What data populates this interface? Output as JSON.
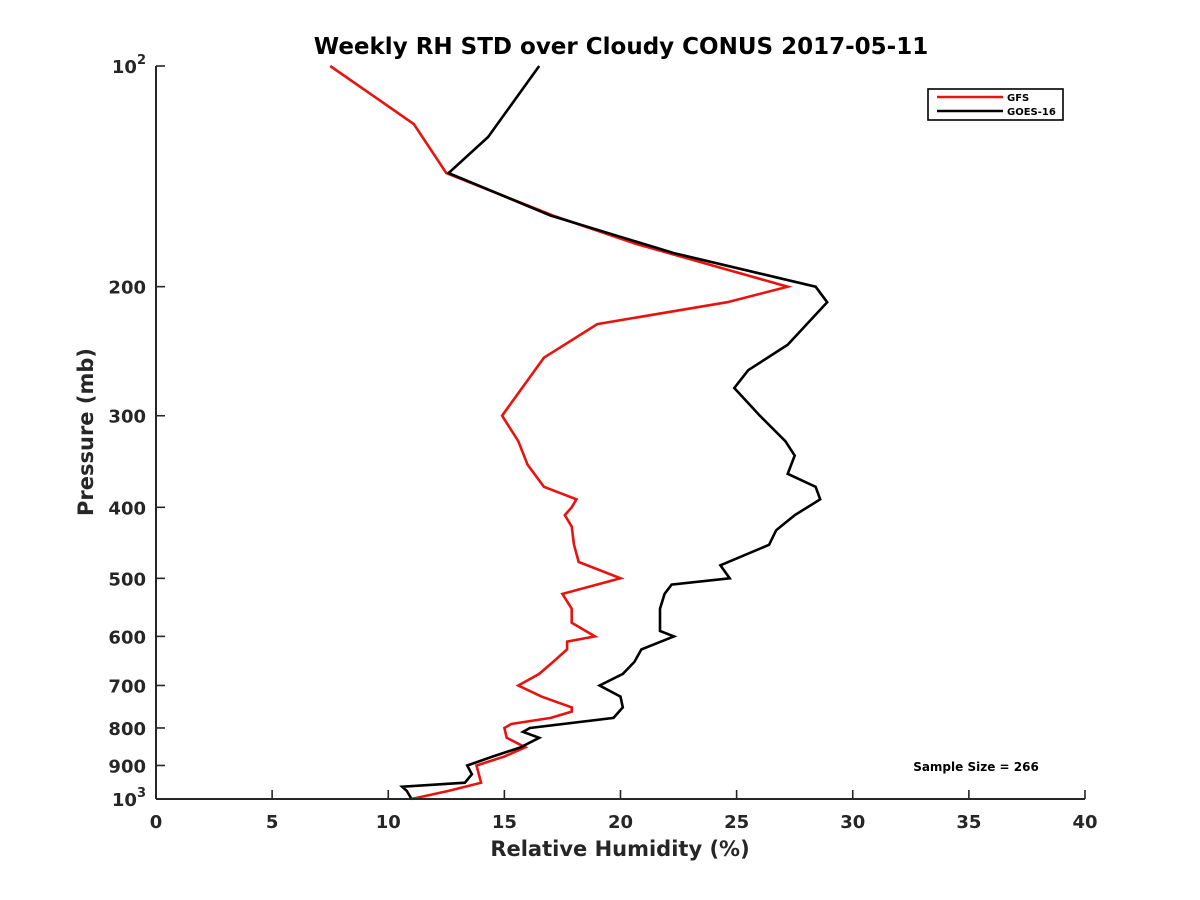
{
  "chart_data": {
    "type": "line",
    "title": "Weekly RH STD over Cloudy CONUS 2017-05-11",
    "xlabel": "Relative Humidity (%)",
    "ylabel": "Pressure (mb)",
    "xlim": [
      0,
      40
    ],
    "ylim": [
      100,
      1000
    ],
    "y_scale": "log",
    "y_reversed": true,
    "x_ticks": [
      0,
      5,
      10,
      15,
      20,
      25,
      30,
      35,
      40
    ],
    "y_ticks": [
      100,
      200,
      300,
      400,
      500,
      600,
      700,
      800,
      900,
      1000
    ],
    "y_tick_labels": [
      {
        "base": "10",
        "exp": "2"
      },
      {
        "base": "200",
        "exp": ""
      },
      {
        "base": "300",
        "exp": ""
      },
      {
        "base": "400",
        "exp": ""
      },
      {
        "base": "500",
        "exp": ""
      },
      {
        "base": "600",
        "exp": ""
      },
      {
        "base": "700",
        "exp": ""
      },
      {
        "base": "800",
        "exp": ""
      },
      {
        "base": "900",
        "exp": ""
      },
      {
        "base": "10",
        "exp": "3"
      }
    ],
    "grid": false,
    "legend_position": "top-right",
    "series": [
      {
        "name": "GFS",
        "color": "#e8130f",
        "points": [
          [
            11.0,
            1000
          ],
          [
            12.6,
            975
          ],
          [
            14.0,
            950
          ],
          [
            13.9,
            925
          ],
          [
            13.8,
            900
          ],
          [
            15.0,
            875
          ],
          [
            15.9,
            850
          ],
          [
            15.1,
            825
          ],
          [
            15.0,
            800
          ],
          [
            15.3,
            790
          ],
          [
            17.0,
            775
          ],
          [
            17.9,
            760
          ],
          [
            17.9,
            750
          ],
          [
            16.6,
            725
          ],
          [
            15.6,
            700
          ],
          [
            16.5,
            675
          ],
          [
            17.1,
            650
          ],
          [
            17.7,
            625
          ],
          [
            17.7,
            610
          ],
          [
            18.9,
            600
          ],
          [
            17.9,
            575
          ],
          [
            17.9,
            550
          ],
          [
            17.5,
            525
          ],
          [
            20.0,
            500
          ],
          [
            18.2,
            475
          ],
          [
            18.0,
            450
          ],
          [
            17.9,
            425
          ],
          [
            17.6,
            410
          ],
          [
            17.9,
            400
          ],
          [
            18.1,
            390
          ],
          [
            16.7,
            375
          ],
          [
            16.0,
            350
          ],
          [
            15.6,
            325
          ],
          [
            14.9,
            300
          ],
          [
            16.7,
            250
          ],
          [
            19.0,
            225
          ],
          [
            24.6,
            210
          ],
          [
            27.2,
            200
          ],
          [
            20.7,
            175
          ],
          [
            17.1,
            160
          ],
          [
            12.5,
            140
          ],
          [
            11.1,
            120
          ],
          [
            7.5,
            100
          ]
        ]
      },
      {
        "name": "GOES-16",
        "color": "#000000",
        "points": [
          [
            11.0,
            1000
          ],
          [
            10.8,
            975
          ],
          [
            10.6,
            962
          ],
          [
            13.3,
            950
          ],
          [
            13.6,
            925
          ],
          [
            13.4,
            900
          ],
          [
            14.5,
            875
          ],
          [
            15.7,
            850
          ],
          [
            16.5,
            825
          ],
          [
            15.8,
            810
          ],
          [
            16.1,
            800
          ],
          [
            19.7,
            775
          ],
          [
            20.1,
            750
          ],
          [
            20.0,
            725
          ],
          [
            19.1,
            700
          ],
          [
            20.1,
            675
          ],
          [
            20.6,
            650
          ],
          [
            20.9,
            625
          ],
          [
            22.3,
            600
          ],
          [
            21.7,
            590
          ],
          [
            21.7,
            550
          ],
          [
            21.9,
            525
          ],
          [
            22.2,
            510
          ],
          [
            24.7,
            500
          ],
          [
            24.3,
            480
          ],
          [
            26.4,
            450
          ],
          [
            26.7,
            430
          ],
          [
            27.5,
            410
          ],
          [
            28.6,
            390
          ],
          [
            28.4,
            375
          ],
          [
            27.2,
            360
          ],
          [
            27.5,
            340
          ],
          [
            27.1,
            325
          ],
          [
            26.0,
            300
          ],
          [
            24.9,
            275
          ],
          [
            25.5,
            260
          ],
          [
            27.2,
            240
          ],
          [
            28.9,
            210
          ],
          [
            28.4,
            200
          ],
          [
            22.3,
            180
          ],
          [
            17.0,
            160
          ],
          [
            12.6,
            140
          ],
          [
            14.3,
            125
          ],
          [
            16.5,
            100
          ]
        ]
      }
    ],
    "annotation": "Sample Size = 266"
  }
}
